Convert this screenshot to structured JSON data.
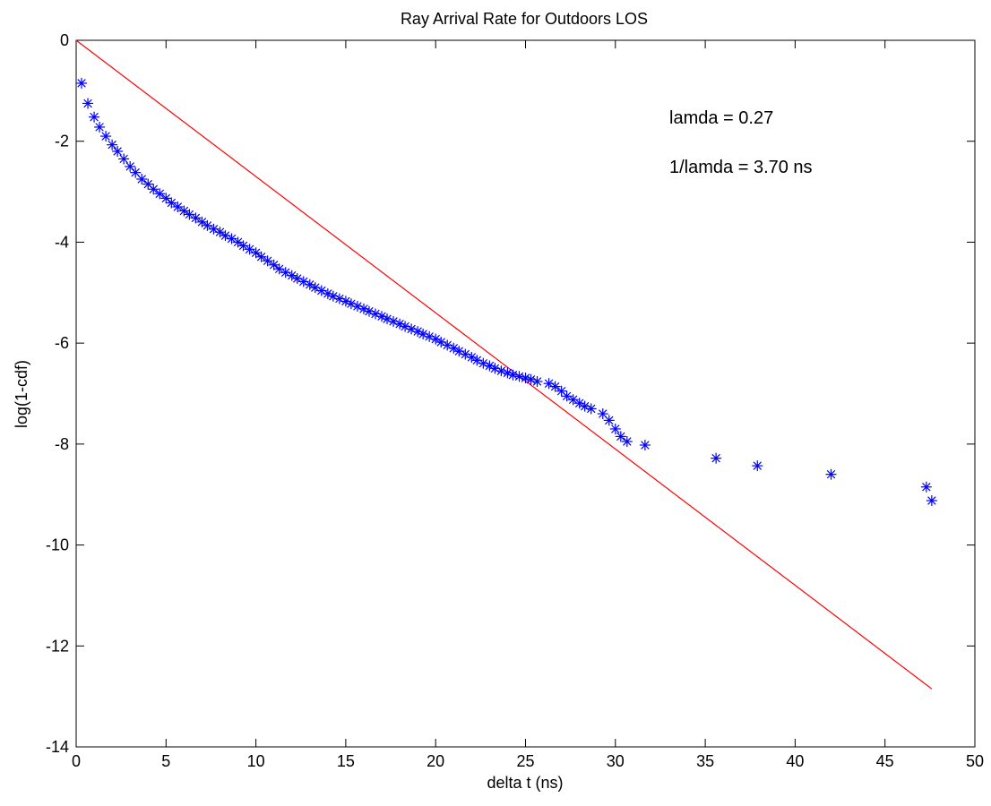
{
  "chart_data": {
    "type": "scatter",
    "title": "Ray Arrival Rate for Outdoors LOS",
    "xlabel": "delta t (ns)",
    "ylabel": "log(1-cdf)",
    "xlim": [
      0,
      50
    ],
    "ylim": [
      -14,
      0
    ],
    "xticks": [
      0,
      5,
      10,
      15,
      20,
      25,
      30,
      35,
      40,
      45,
      50
    ],
    "yticks": [
      0,
      -2,
      -4,
      -6,
      -8,
      -10,
      -12,
      -14
    ],
    "xtick_labels": [
      "0",
      "5",
      "10",
      "15",
      "20",
      "25",
      "30",
      "35",
      "40",
      "45",
      "50"
    ],
    "ytick_labels": [
      "0",
      "-2",
      "-4",
      "-6",
      "-8",
      "-10",
      "-12",
      "-14"
    ],
    "grid": false,
    "colors": {
      "points": "#0000ff",
      "fit_line": "#ff0000",
      "axes": "#000000"
    },
    "annotations": [
      {
        "text": "lamda = 0.27",
        "x": 33,
        "y": -1.75
      },
      {
        "text": "1/lamda = 3.70 ns",
        "x": 33,
        "y": -2.6
      }
    ],
    "series": [
      {
        "type": "scatter",
        "marker": "asterisk",
        "color": "#0000ff",
        "x": [
          0.3,
          0.65,
          1.0,
          1.3,
          1.65,
          2.0,
          2.3,
          2.65,
          3.0,
          3.3,
          3.65,
          4.0,
          4.3,
          4.65,
          5.0,
          5.3,
          5.65,
          6.0,
          6.3,
          6.65,
          7.0,
          7.3,
          7.65,
          8.0,
          8.3,
          8.65,
          9.0,
          9.3,
          9.65,
          10.0,
          10.3,
          10.65,
          11.0,
          11.3,
          11.65,
          12.0,
          12.3,
          12.65,
          13.0,
          13.3,
          13.65,
          14.0,
          14.3,
          14.65,
          15.0,
          15.3,
          15.65,
          16.0,
          16.3,
          16.65,
          17.0,
          17.3,
          17.65,
          18.0,
          18.3,
          18.65,
          19.0,
          19.3,
          19.65,
          20.0,
          20.3,
          20.65,
          21.0,
          21.3,
          21.65,
          22.0,
          22.3,
          22.65,
          23.0,
          23.3,
          23.65,
          24.0,
          24.3,
          24.65,
          25.0,
          25.3,
          25.65,
          26.3,
          26.65,
          27.0,
          27.3,
          27.65,
          28.0,
          28.3,
          28.65,
          29.3,
          29.65,
          30.0,
          30.3,
          30.65,
          31.65,
          35.6,
          37.9,
          42.0,
          47.3,
          47.6
        ],
        "y": [
          -0.85,
          -1.25,
          -1.52,
          -1.72,
          -1.9,
          -2.07,
          -2.2,
          -2.35,
          -2.5,
          -2.62,
          -2.75,
          -2.85,
          -2.95,
          -3.04,
          -3.13,
          -3.22,
          -3.3,
          -3.38,
          -3.45,
          -3.52,
          -3.6,
          -3.67,
          -3.74,
          -3.8,
          -3.87,
          -3.93,
          -4.0,
          -4.07,
          -4.14,
          -4.21,
          -4.29,
          -4.37,
          -4.45,
          -4.53,
          -4.6,
          -4.66,
          -4.72,
          -4.78,
          -4.84,
          -4.9,
          -4.96,
          -5.02,
          -5.07,
          -5.12,
          -5.17,
          -5.22,
          -5.27,
          -5.32,
          -5.37,
          -5.42,
          -5.47,
          -5.52,
          -5.57,
          -5.62,
          -5.67,
          -5.72,
          -5.77,
          -5.82,
          -5.87,
          -5.92,
          -5.98,
          -6.04,
          -6.1,
          -6.16,
          -6.22,
          -6.28,
          -6.34,
          -6.4,
          -6.45,
          -6.5,
          -6.55,
          -6.59,
          -6.63,
          -6.66,
          -6.69,
          -6.72,
          -6.76,
          -6.8,
          -6.86,
          -6.95,
          -7.05,
          -7.12,
          -7.19,
          -7.25,
          -7.3,
          -7.4,
          -7.53,
          -7.7,
          -7.85,
          -7.95,
          -8.02,
          -8.28,
          -8.43,
          -8.6,
          -8.85,
          -9.12
        ]
      },
      {
        "type": "line",
        "color": "#ff0000",
        "x": [
          0,
          47.6
        ],
        "y": [
          0,
          -12.85
        ]
      }
    ]
  }
}
